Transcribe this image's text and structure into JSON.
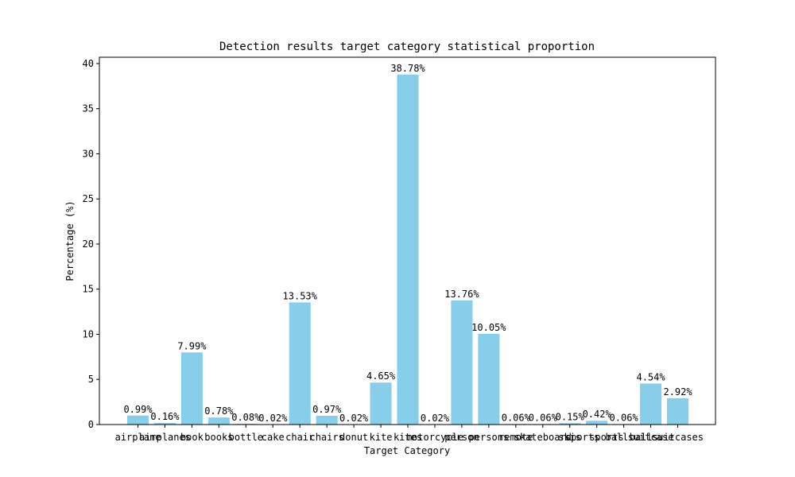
{
  "chart_data": {
    "type": "bar",
    "title": "Detection results target category statistical proportion",
    "xlabel": "Target Category",
    "ylabel": "Percentage (%)",
    "ylim": [
      0,
      40.7
    ],
    "yticks": [
      0,
      5,
      10,
      15,
      20,
      25,
      30,
      35,
      40
    ],
    "grid": false,
    "bar_color": "#87CEEB",
    "categories": [
      "airplane",
      "airplanes",
      "book",
      "books",
      "bottle",
      "cake",
      "chair",
      "chairs",
      "donut",
      "kite",
      "kites",
      "motorcycle",
      "person",
      "persons",
      "remote",
      "skateboard",
      "skis",
      "sports ball",
      "sports balls",
      "suitcase",
      "suitcases"
    ],
    "values": [
      0.99,
      0.16,
      7.99,
      0.78,
      0.08,
      0.02,
      13.53,
      0.97,
      0.02,
      4.65,
      38.78,
      0.02,
      13.76,
      10.05,
      0.06,
      0.06,
      0.15,
      0.42,
      0.06,
      4.54,
      2.92
    ],
    "labels": [
      "0.99%",
      "0.16%",
      "7.99%",
      "0.78%",
      "0.08%",
      "0.02%",
      "13.53%",
      "0.97%",
      "0.02%",
      "4.65%",
      "38.78%",
      "0.02%",
      "13.76%",
      "10.05%",
      "0.06%",
      "0.06%",
      "0.15%",
      "0.42%",
      "0.06%",
      "4.54%",
      "2.92%"
    ]
  }
}
